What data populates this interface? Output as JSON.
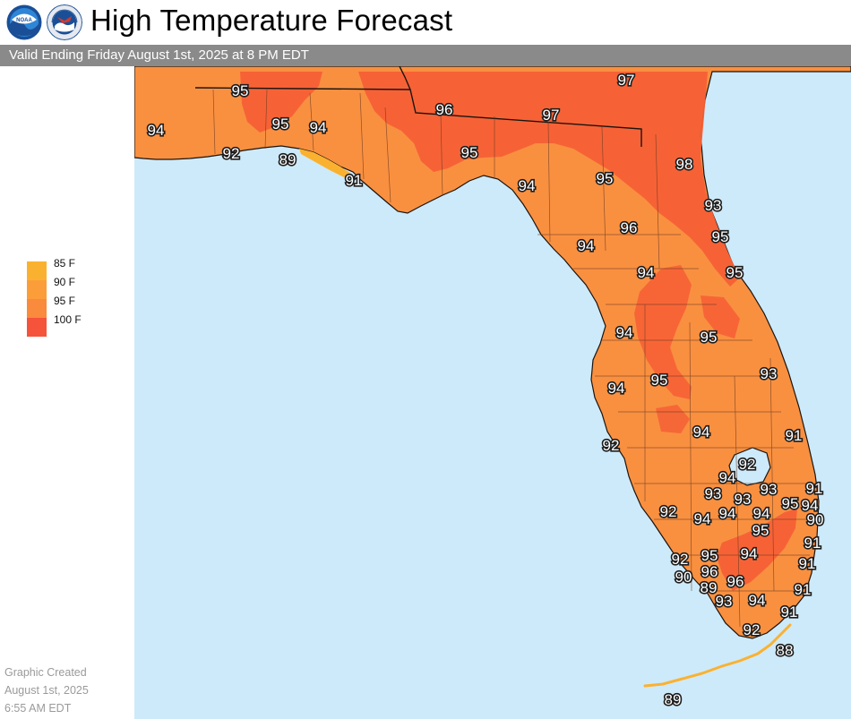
{
  "header": {
    "title": "High Temperature Forecast",
    "valid_text": "Valid Ending Friday August 1st, 2025 at 8 PM EDT",
    "logos": [
      {
        "name": "noaa-logo",
        "text": "NOAA",
        "color": "#1d5fa8"
      },
      {
        "name": "nws-logo",
        "text": "NATIONAL WEATHER SERVICE",
        "color": "#1d5fa8"
      }
    ]
  },
  "legend": {
    "items": [
      {
        "label": "85 F",
        "color": "#fbb130"
      },
      {
        "label": "90 F",
        "color": "#fb9e3a"
      },
      {
        "label": "95 F",
        "color": "#fa8a3c"
      },
      {
        "label": "100 F",
        "color": "#f5533a"
      }
    ]
  },
  "footer": {
    "line1": "Graphic Created",
    "line2": "August 1st, 2025",
    "line3": "6:55 AM EDT"
  },
  "colors": {
    "water": "#cdeafa",
    "land_base": "#f99040",
    "hot": "#f66036",
    "mild": "#fbb130",
    "border": "#3a2a22"
  },
  "temperatures": [
    "94",
    "92",
    "95",
    "95",
    "94",
    "89",
    "91",
    "96",
    "97",
    "97",
    "95",
    "94",
    "95",
    "98",
    "93",
    "96",
    "95",
    "94",
    "94",
    "95",
    "94",
    "95",
    "93",
    "94",
    "95",
    "94",
    "92",
    "91",
    "92",
    "94",
    "91",
    "93",
    "93",
    "93",
    "94",
    "92",
    "95",
    "94",
    "94",
    "94",
    "90",
    "95",
    "91",
    "92",
    "95",
    "94",
    "90",
    "96",
    "91",
    "89",
    "96",
    "93",
    "94",
    "91",
    "92",
    "88",
    "91",
    "89"
  ]
}
